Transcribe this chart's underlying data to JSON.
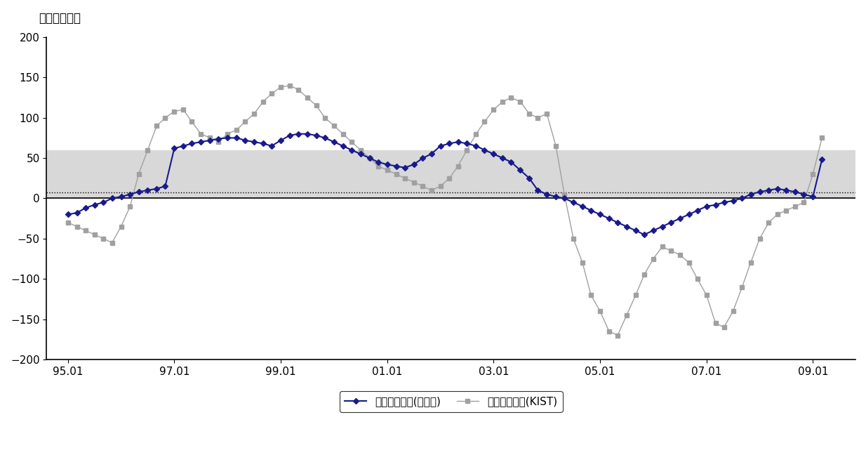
{
  "title_ylabel": "목표재고일수",
  "legend_label1": "목표재고수준(조달청)",
  "legend_label2": "목표재고수준(KIST)",
  "ylim": [
    -200,
    200
  ],
  "yticks": [
    -200,
    -150,
    -100,
    -50,
    0,
    50,
    100,
    150,
    200
  ],
  "shaded_band": [
    0,
    60
  ],
  "xtick_labels": [
    "95.01",
    "97.01",
    "99.01",
    "01.01",
    "03.01",
    "05.01",
    "07.01",
    "09.01"
  ],
  "xtick_positions": [
    1995.0,
    1997.0,
    1999.0,
    2001.0,
    2003.0,
    2005.0,
    2007.0,
    2009.0
  ],
  "xlim": [
    1994.6,
    2009.8
  ],
  "조달청_x": [
    1995.0,
    1995.17,
    1995.33,
    1995.5,
    1995.67,
    1995.83,
    1996.0,
    1996.17,
    1996.33,
    1996.5,
    1996.67,
    1996.83,
    1997.0,
    1997.17,
    1997.33,
    1997.5,
    1997.67,
    1997.83,
    1998.0,
    1998.17,
    1998.33,
    1998.5,
    1998.67,
    1998.83,
    1999.0,
    1999.17,
    1999.33,
    1999.5,
    1999.67,
    1999.83,
    2000.0,
    2000.17,
    2000.33,
    2000.5,
    2000.67,
    2000.83,
    2001.0,
    2001.17,
    2001.33,
    2001.5,
    2001.67,
    2001.83,
    2002.0,
    2002.17,
    2002.33,
    2002.5,
    2002.67,
    2002.83,
    2003.0,
    2003.17,
    2003.33,
    2003.5,
    2003.67,
    2003.83,
    2004.0,
    2004.17,
    2004.33,
    2004.5,
    2004.67,
    2004.83,
    2005.0,
    2005.17,
    2005.33,
    2005.5,
    2005.67,
    2005.83,
    2006.0,
    2006.17,
    2006.33,
    2006.5,
    2006.67,
    2006.83,
    2007.0,
    2007.17,
    2007.33,
    2007.5,
    2007.67,
    2007.83,
    2008.0,
    2008.17,
    2008.33,
    2008.5,
    2008.67,
    2008.83,
    2009.0,
    2009.17
  ],
  "조달청_y": [
    -20,
    -18,
    -12,
    -8,
    -5,
    0,
    2,
    5,
    8,
    10,
    12,
    15,
    62,
    65,
    68,
    70,
    72,
    74,
    75,
    75,
    72,
    70,
    68,
    65,
    72,
    78,
    80,
    80,
    78,
    75,
    70,
    65,
    60,
    55,
    50,
    45,
    42,
    40,
    38,
    42,
    50,
    55,
    65,
    68,
    70,
    68,
    65,
    60,
    55,
    50,
    45,
    35,
    25,
    10,
    5,
    2,
    0,
    -5,
    -10,
    -15,
    -20,
    -25,
    -30,
    -35,
    -40,
    -45,
    -40,
    -35,
    -30,
    -25,
    -20,
    -15,
    -10,
    -8,
    -5,
    -3,
    0,
    5,
    8,
    10,
    12,
    10,
    8,
    5,
    2,
    48
  ],
  "KIST_x": [
    1995.0,
    1995.17,
    1995.33,
    1995.5,
    1995.67,
    1995.83,
    1996.0,
    1996.17,
    1996.33,
    1996.5,
    1996.67,
    1996.83,
    1997.0,
    1997.17,
    1997.33,
    1997.5,
    1997.67,
    1997.83,
    1998.0,
    1998.17,
    1998.33,
    1998.5,
    1998.67,
    1998.83,
    1999.0,
    1999.17,
    1999.33,
    1999.5,
    1999.67,
    1999.83,
    2000.0,
    2000.17,
    2000.33,
    2000.5,
    2000.67,
    2000.83,
    2001.0,
    2001.17,
    2001.33,
    2001.5,
    2001.67,
    2001.83,
    2002.0,
    2002.17,
    2002.33,
    2002.5,
    2002.67,
    2002.83,
    2003.0,
    2003.17,
    2003.33,
    2003.5,
    2003.67,
    2003.83,
    2004.0,
    2004.17,
    2004.33,
    2004.5,
    2004.67,
    2004.83,
    2005.0,
    2005.17,
    2005.33,
    2005.5,
    2005.67,
    2005.83,
    2006.0,
    2006.17,
    2006.33,
    2006.5,
    2006.67,
    2006.83,
    2007.0,
    2007.17,
    2007.33,
    2007.5,
    2007.67,
    2007.83,
    2008.0,
    2008.17,
    2008.33,
    2008.5,
    2008.67,
    2008.83,
    2009.0,
    2009.17
  ],
  "KIST_y": [
    -30,
    -35,
    -40,
    -45,
    -50,
    -55,
    -35,
    -10,
    30,
    60,
    90,
    100,
    108,
    110,
    95,
    80,
    75,
    70,
    80,
    85,
    95,
    105,
    120,
    130,
    138,
    140,
    135,
    125,
    115,
    100,
    90,
    80,
    70,
    60,
    50,
    40,
    35,
    30,
    25,
    20,
    15,
    10,
    15,
    25,
    40,
    60,
    80,
    95,
    110,
    120,
    125,
    120,
    105,
    100,
    105,
    65,
    5,
    -50,
    -80,
    -120,
    -140,
    -165,
    -170,
    -145,
    -120,
    -95,
    -75,
    -60,
    -65,
    -70,
    -80,
    -100,
    -120,
    -155,
    -160,
    -140,
    -110,
    -80,
    -50,
    -30,
    -20,
    -15,
    -10,
    -5,
    30,
    75
  ],
  "shaded_color": "#d8d8d8",
  "dotted_y": 0,
  "조달청_color": "#1a1a8c",
  "KIST_color": "#a0a0a0"
}
